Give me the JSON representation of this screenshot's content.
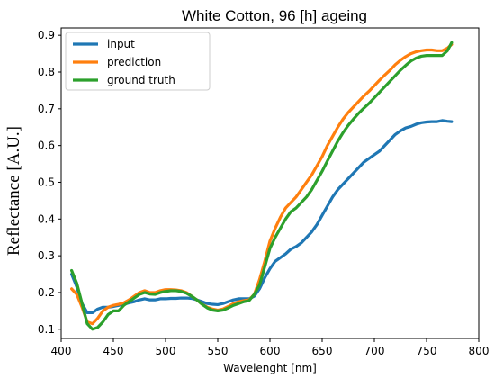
{
  "chart_data": {
    "type": "line",
    "title": "White Cotton, 96 [h] ageing",
    "xlabel": "Wavelenght [nm]",
    "ylabel": "Reflectance [A.U.]",
    "xlim": [
      400,
      800
    ],
    "ylim": [
      0.075,
      0.92
    ],
    "xticks": [
      400,
      450,
      500,
      550,
      600,
      650,
      700,
      750,
      800
    ],
    "yticks": [
      0.1,
      0.2,
      0.3,
      0.4,
      0.5,
      0.6,
      0.7,
      0.8,
      0.9
    ],
    "grid": false,
    "legend_position": "top-left",
    "series": [
      {
        "name": "input",
        "color": "#1f77b4",
        "x": [
          410,
          415,
          420,
          425,
          430,
          435,
          440,
          445,
          450,
          455,
          460,
          465,
          470,
          475,
          480,
          485,
          490,
          495,
          500,
          505,
          510,
          515,
          520,
          525,
          530,
          535,
          540,
          545,
          550,
          555,
          560,
          565,
          570,
          575,
          580,
          585,
          590,
          595,
          600,
          605,
          610,
          615,
          620,
          625,
          630,
          635,
          640,
          645,
          650,
          655,
          660,
          665,
          670,
          675,
          680,
          685,
          690,
          695,
          700,
          705,
          710,
          715,
          720,
          725,
          730,
          735,
          740,
          745,
          750,
          755,
          760,
          765,
          770,
          774
        ],
        "y": [
          0.25,
          0.215,
          0.17,
          0.145,
          0.145,
          0.155,
          0.16,
          0.16,
          0.162,
          0.165,
          0.168,
          0.172,
          0.175,
          0.18,
          0.183,
          0.18,
          0.18,
          0.183,
          0.183,
          0.184,
          0.184,
          0.185,
          0.185,
          0.184,
          0.18,
          0.175,
          0.17,
          0.168,
          0.167,
          0.17,
          0.175,
          0.18,
          0.183,
          0.183,
          0.183,
          0.19,
          0.21,
          0.24,
          0.265,
          0.285,
          0.295,
          0.305,
          0.318,
          0.325,
          0.335,
          0.35,
          0.365,
          0.385,
          0.41,
          0.435,
          0.46,
          0.48,
          0.495,
          0.51,
          0.525,
          0.54,
          0.555,
          0.565,
          0.575,
          0.585,
          0.6,
          0.615,
          0.63,
          0.64,
          0.648,
          0.652,
          0.658,
          0.662,
          0.664,
          0.665,
          0.665,
          0.668,
          0.666,
          0.665
        ]
      },
      {
        "name": "prediction",
        "color": "#ff7f0e",
        "x": [
          410,
          415,
          420,
          425,
          430,
          435,
          440,
          445,
          450,
          455,
          460,
          465,
          470,
          475,
          480,
          485,
          490,
          495,
          500,
          505,
          510,
          515,
          520,
          525,
          530,
          535,
          540,
          545,
          550,
          555,
          560,
          565,
          570,
          575,
          580,
          585,
          590,
          595,
          600,
          605,
          610,
          615,
          620,
          625,
          630,
          635,
          640,
          645,
          650,
          655,
          660,
          665,
          670,
          675,
          680,
          685,
          690,
          695,
          700,
          705,
          710,
          715,
          720,
          725,
          730,
          735,
          740,
          745,
          750,
          755,
          760,
          765,
          770,
          774
        ],
        "y": [
          0.21,
          0.195,
          0.16,
          0.12,
          0.115,
          0.13,
          0.15,
          0.16,
          0.165,
          0.168,
          0.172,
          0.18,
          0.19,
          0.2,
          0.205,
          0.2,
          0.2,
          0.205,
          0.208,
          0.208,
          0.207,
          0.205,
          0.2,
          0.19,
          0.18,
          0.168,
          0.16,
          0.155,
          0.152,
          0.155,
          0.162,
          0.17,
          0.175,
          0.178,
          0.18,
          0.195,
          0.235,
          0.285,
          0.34,
          0.375,
          0.405,
          0.43,
          0.445,
          0.46,
          0.48,
          0.5,
          0.52,
          0.545,
          0.57,
          0.6,
          0.625,
          0.65,
          0.672,
          0.69,
          0.705,
          0.72,
          0.735,
          0.748,
          0.763,
          0.778,
          0.792,
          0.805,
          0.82,
          0.832,
          0.842,
          0.85,
          0.855,
          0.858,
          0.86,
          0.86,
          0.858,
          0.858,
          0.865,
          0.875
        ]
      },
      {
        "name": "ground truth",
        "color": "#2ca02c",
        "x": [
          410,
          415,
          420,
          425,
          430,
          435,
          440,
          445,
          450,
          455,
          460,
          465,
          470,
          475,
          480,
          485,
          490,
          495,
          500,
          505,
          510,
          515,
          520,
          525,
          530,
          535,
          540,
          545,
          550,
          555,
          560,
          565,
          570,
          575,
          580,
          585,
          590,
          595,
          600,
          605,
          610,
          615,
          620,
          625,
          630,
          635,
          640,
          645,
          650,
          655,
          660,
          665,
          670,
          675,
          680,
          685,
          690,
          695,
          700,
          705,
          710,
          715,
          720,
          725,
          730,
          735,
          740,
          745,
          750,
          755,
          760,
          765,
          770,
          774
        ],
        "y": [
          0.26,
          0.225,
          0.17,
          0.115,
          0.1,
          0.105,
          0.12,
          0.14,
          0.15,
          0.15,
          0.165,
          0.175,
          0.185,
          0.195,
          0.2,
          0.196,
          0.195,
          0.2,
          0.203,
          0.205,
          0.205,
          0.203,
          0.198,
          0.19,
          0.18,
          0.168,
          0.158,
          0.152,
          0.15,
          0.152,
          0.158,
          0.165,
          0.17,
          0.175,
          0.178,
          0.195,
          0.22,
          0.27,
          0.32,
          0.35,
          0.375,
          0.4,
          0.42,
          0.43,
          0.445,
          0.46,
          0.48,
          0.505,
          0.53,
          0.558,
          0.585,
          0.612,
          0.635,
          0.655,
          0.672,
          0.688,
          0.702,
          0.715,
          0.73,
          0.745,
          0.76,
          0.775,
          0.79,
          0.805,
          0.818,
          0.83,
          0.838,
          0.843,
          0.845,
          0.845,
          0.845,
          0.845,
          0.858,
          0.88
        ]
      }
    ]
  }
}
